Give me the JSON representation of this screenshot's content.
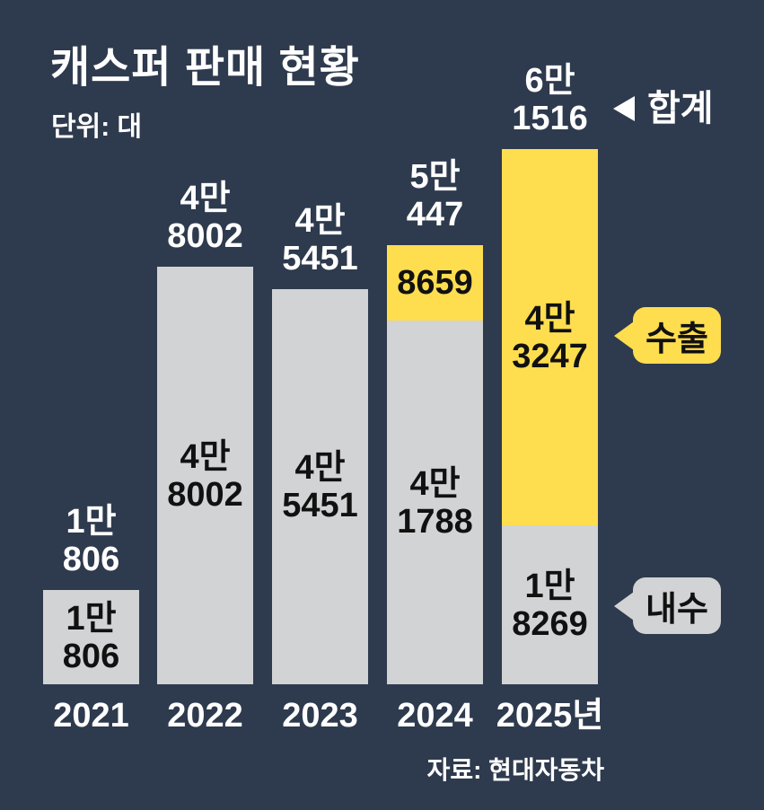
{
  "title": "캐스퍼 판매 현황",
  "subtitle": "단위: 대",
  "source": "자료: 현대자동차",
  "callouts": {
    "total": "합계",
    "export": "수출",
    "domestic": "내수"
  },
  "colors": {
    "background": "#2e3a4d",
    "export": "#fedd4f",
    "domestic": "#d2d3d4",
    "light_text": "#ffffff",
    "dark_text": "#111111"
  },
  "chart_data": {
    "type": "bar",
    "stacked": true,
    "title": "캐스퍼 판매 현황",
    "unit": "대",
    "categories": [
      "2021",
      "2022",
      "2023",
      "2024",
      "2025년"
    ],
    "series": [
      {
        "name": "내수",
        "color": "#d2d3d4",
        "values": [
          10806,
          48002,
          45451,
          41788,
          18269
        ]
      },
      {
        "name": "수출",
        "color": "#fedd4f",
        "values": [
          0,
          0,
          0,
          8659,
          43247
        ]
      }
    ],
    "totals": [
      10806,
      48002,
      45451,
      50447,
      61516
    ],
    "total_labels": [
      [
        "1만",
        "806"
      ],
      [
        "4만",
        "8002"
      ],
      [
        "4만",
        "5451"
      ],
      [
        "5만",
        "447"
      ],
      [
        "6만",
        "1516"
      ]
    ],
    "domestic_labels": [
      [
        "1만",
        "806"
      ],
      [
        "4만",
        "8002"
      ],
      [
        "4만",
        "5451"
      ],
      [
        "4만",
        "1788"
      ],
      [
        "1만",
        "8269"
      ]
    ],
    "export_labels": [
      [],
      [],
      [],
      [
        "8659"
      ],
      [
        "4만",
        "3247"
      ]
    ],
    "grid": false,
    "legend_position": "right",
    "ylim": [
      0,
      61516
    ]
  }
}
